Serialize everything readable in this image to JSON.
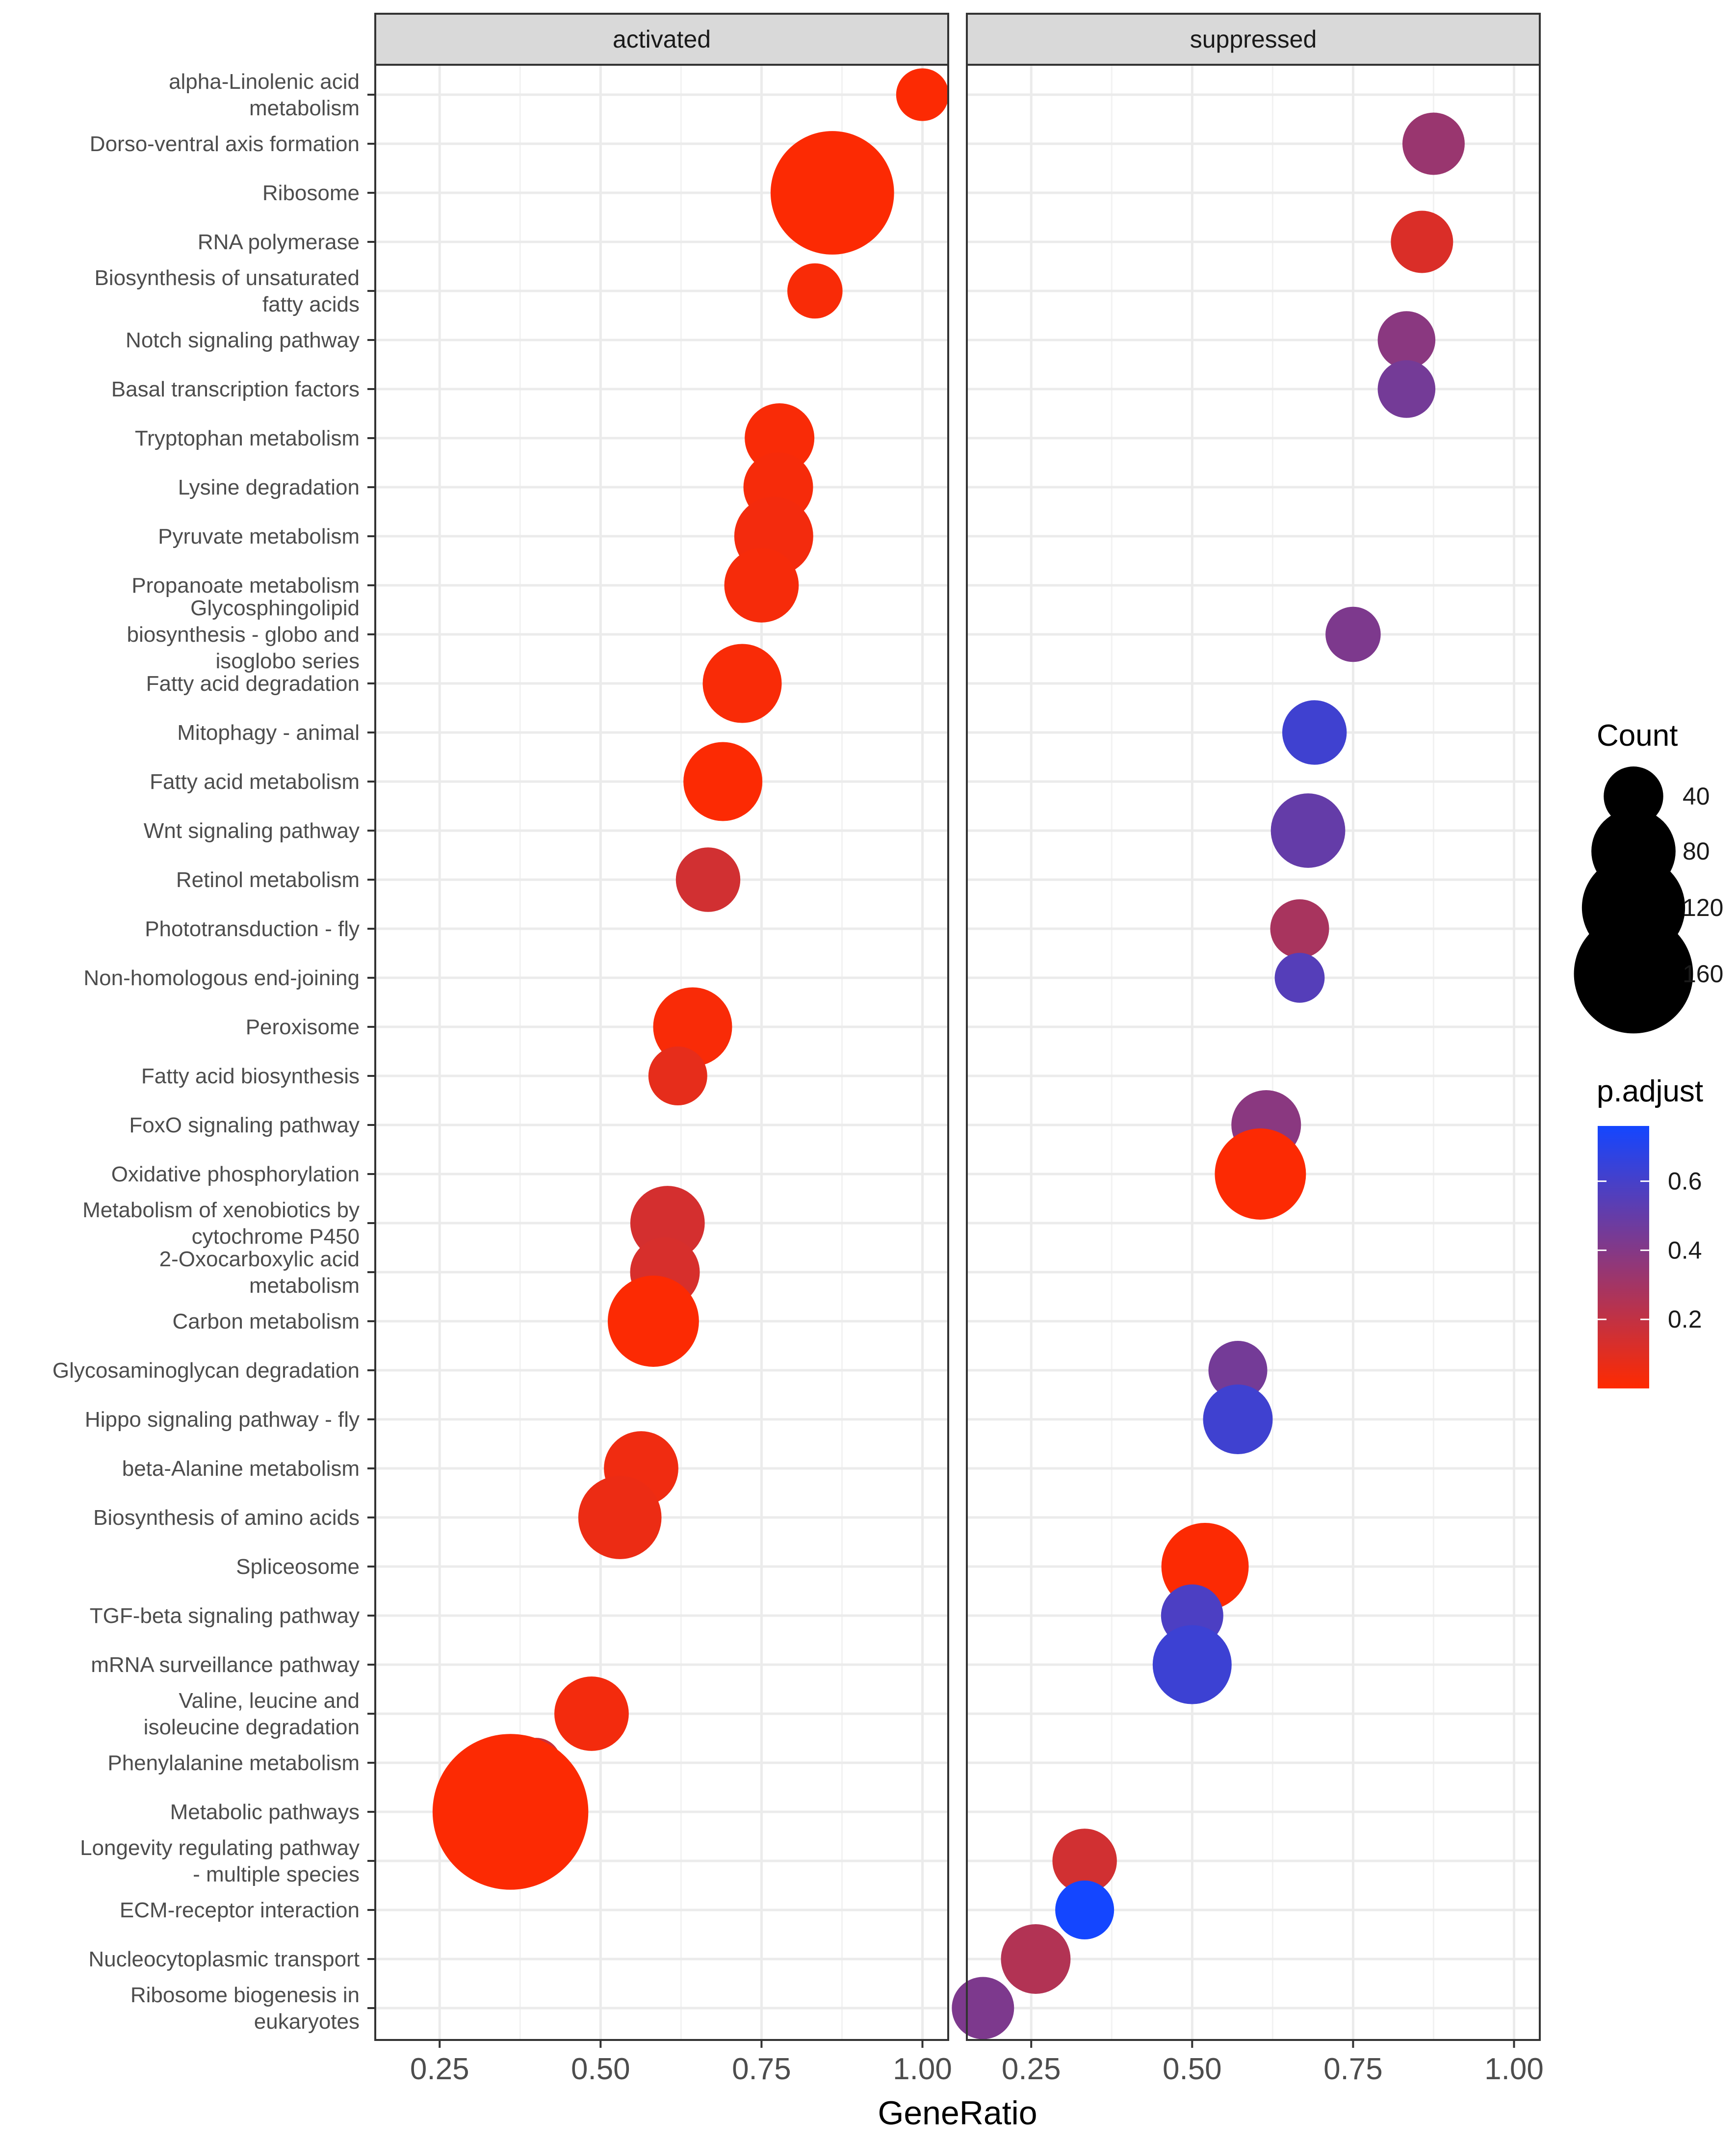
{
  "chart_data": {
    "type": "scatter",
    "xlabel": "GeneRatio",
    "xlim": [
      0.15,
      1.04
    ],
    "xticks": [
      0.25,
      0.5,
      0.75,
      1.0
    ],
    "xtick_labels": [
      "0.25",
      "0.50",
      "0.75",
      "1.00"
    ],
    "panels": [
      {
        "key": "activated",
        "title": "activated"
      },
      {
        "key": "suppressed",
        "title": "suppressed"
      }
    ],
    "categories": [
      "alpha-Linolenic acid\nmetabolism",
      "Dorso-ventral axis formation",
      "Ribosome",
      "RNA polymerase",
      "Biosynthesis of unsaturated\nfatty acids",
      "Notch signaling pathway",
      "Basal transcription factors",
      "Tryptophan metabolism",
      "Lysine degradation",
      "Pyruvate metabolism",
      "Propanoate metabolism",
      "Glycosphingolipid\nbiosynthesis - globo and\nisoglobo series",
      "Fatty acid degradation",
      "Mitophagy - animal",
      "Fatty acid metabolism",
      "Wnt signaling pathway",
      "Retinol metabolism",
      "Phototransduction - fly",
      "Non-homologous end-joining",
      "Peroxisome",
      "Fatty acid biosynthesis",
      "FoxO signaling pathway",
      "Oxidative phosphorylation",
      "Metabolism of xenobiotics by\ncytochrome P450",
      "2-Oxocarboxylic acid\nmetabolism",
      "Carbon metabolism",
      "Glycosaminoglycan degradation",
      "Hippo signaling pathway - fly",
      "beta-Alanine metabolism",
      "Biosynthesis of amino acids",
      "Spliceosome",
      "TGF-beta signaling pathway",
      "mRNA surveillance pathway",
      "Valine, leucine and\nisoleucine degradation",
      "Phenylalanine metabolism",
      "Metabolic pathways",
      "Longevity regulating pathway\n- multiple species",
      "ECM-receptor interaction",
      "Nucleocytoplasmic transport",
      "Ribosome biogenesis in\neukaryotes"
    ],
    "points": [
      {
        "panel": "activated",
        "category": 0,
        "x": 1.0,
        "count": 20,
        "p_adjust": 0.01
      },
      {
        "panel": "suppressed",
        "category": 1,
        "x": 0.875,
        "count": 28,
        "p_adjust": 0.33
      },
      {
        "panel": "activated",
        "category": 2,
        "x": 0.86,
        "count": 110,
        "p_adjust": 0.01
      },
      {
        "panel": "suppressed",
        "category": 3,
        "x": 0.857,
        "count": 28,
        "p_adjust": 0.12
      },
      {
        "panel": "activated",
        "category": 4,
        "x": 0.833,
        "count": 22,
        "p_adjust": 0.02
      },
      {
        "panel": "suppressed",
        "category": 5,
        "x": 0.833,
        "count": 24,
        "p_adjust": 0.38
      },
      {
        "panel": "suppressed",
        "category": 6,
        "x": 0.833,
        "count": 24,
        "p_adjust": 0.45
      },
      {
        "panel": "activated",
        "category": 7,
        "x": 0.778,
        "count": 35,
        "p_adjust": 0.02
      },
      {
        "panel": "activated",
        "category": 8,
        "x": 0.776,
        "count": 35,
        "p_adjust": 0.03
      },
      {
        "panel": "activated",
        "category": 9,
        "x": 0.769,
        "count": 45,
        "p_adjust": 0.04
      },
      {
        "panel": "activated",
        "category": 10,
        "x": 0.75,
        "count": 40,
        "p_adjust": 0.03
      },
      {
        "panel": "suppressed",
        "category": 11,
        "x": 0.75,
        "count": 22,
        "p_adjust": 0.42
      },
      {
        "panel": "activated",
        "category": 12,
        "x": 0.72,
        "count": 45,
        "p_adjust": 0.02
      },
      {
        "panel": "suppressed",
        "category": 13,
        "x": 0.69,
        "count": 30,
        "p_adjust": 0.62
      },
      {
        "panel": "activated",
        "category": 14,
        "x": 0.69,
        "count": 45,
        "p_adjust": 0.01
      },
      {
        "panel": "suppressed",
        "category": 15,
        "x": 0.68,
        "count": 40,
        "p_adjust": 0.5
      },
      {
        "panel": "activated",
        "category": 16,
        "x": 0.667,
        "count": 30,
        "p_adjust": 0.15
      },
      {
        "panel": "suppressed",
        "category": 17,
        "x": 0.667,
        "count": 25,
        "p_adjust": 0.28
      },
      {
        "panel": "suppressed",
        "category": 18,
        "x": 0.667,
        "count": 18,
        "p_adjust": 0.55
      },
      {
        "panel": "activated",
        "category": 19,
        "x": 0.643,
        "count": 45,
        "p_adjust": 0.02
      },
      {
        "panel": "activated",
        "category": 20,
        "x": 0.62,
        "count": 25,
        "p_adjust": 0.08
      },
      {
        "panel": "suppressed",
        "category": 21,
        "x": 0.615,
        "count": 35,
        "p_adjust": 0.38
      },
      {
        "panel": "suppressed",
        "category": 22,
        "x": 0.606,
        "count": 60,
        "p_adjust": 0.01
      },
      {
        "panel": "activated",
        "category": 23,
        "x": 0.604,
        "count": 40,
        "p_adjust": 0.14
      },
      {
        "panel": "activated",
        "category": 24,
        "x": 0.6,
        "count": 35,
        "p_adjust": 0.13
      },
      {
        "panel": "activated",
        "category": 25,
        "x": 0.582,
        "count": 60,
        "p_adjust": 0.01
      },
      {
        "panel": "suppressed",
        "category": 26,
        "x": 0.571,
        "count": 25,
        "p_adjust": 0.45
      },
      {
        "panel": "suppressed",
        "category": 27,
        "x": 0.571,
        "count": 35,
        "p_adjust": 0.62
      },
      {
        "panel": "activated",
        "category": 28,
        "x": 0.563,
        "count": 40,
        "p_adjust": 0.05
      },
      {
        "panel": "activated",
        "category": 29,
        "x": 0.53,
        "count": 50,
        "p_adjust": 0.06
      },
      {
        "panel": "suppressed",
        "category": 30,
        "x": 0.52,
        "count": 55,
        "p_adjust": 0.01
      },
      {
        "panel": "suppressed",
        "category": 31,
        "x": 0.5,
        "count": 28,
        "p_adjust": 0.58
      },
      {
        "panel": "suppressed",
        "category": 32,
        "x": 0.5,
        "count": 45,
        "p_adjust": 0.63
      },
      {
        "panel": "activated",
        "category": 33,
        "x": 0.486,
        "count": 40,
        "p_adjust": 0.04
      },
      {
        "panel": "activated",
        "category": 34,
        "x": 0.4,
        "count": 18,
        "p_adjust": 0.18
      },
      {
        "panel": "activated",
        "category": 35,
        "x": 0.36,
        "count": 175,
        "p_adjust": 0.01
      },
      {
        "panel": "suppressed",
        "category": 36,
        "x": 0.333,
        "count": 30,
        "p_adjust": 0.15
      },
      {
        "panel": "suppressed",
        "category": 37,
        "x": 0.333,
        "count": 25,
        "p_adjust": 0.76
      },
      {
        "panel": "suppressed",
        "category": 38,
        "x": 0.257,
        "count": 35,
        "p_adjust": 0.25
      },
      {
        "panel": "suppressed",
        "category": 39,
        "x": 0.175,
        "count": 28,
        "p_adjust": 0.42
      }
    ],
    "size_legend": {
      "title": "Count",
      "values": [
        40,
        80,
        120,
        160
      ],
      "labels": [
        "40",
        "80",
        "120",
        "160"
      ]
    },
    "color_legend": {
      "title": "p.adjust",
      "min": 0.0,
      "max": 0.76,
      "ticks": [
        0.2,
        0.4,
        0.6
      ],
      "tick_labels": [
        "0.2",
        "0.4",
        "0.6"
      ],
      "low_color": "#ff2a00",
      "high_color": "#1446ff"
    },
    "grid": true,
    "legend_position": "right"
  }
}
